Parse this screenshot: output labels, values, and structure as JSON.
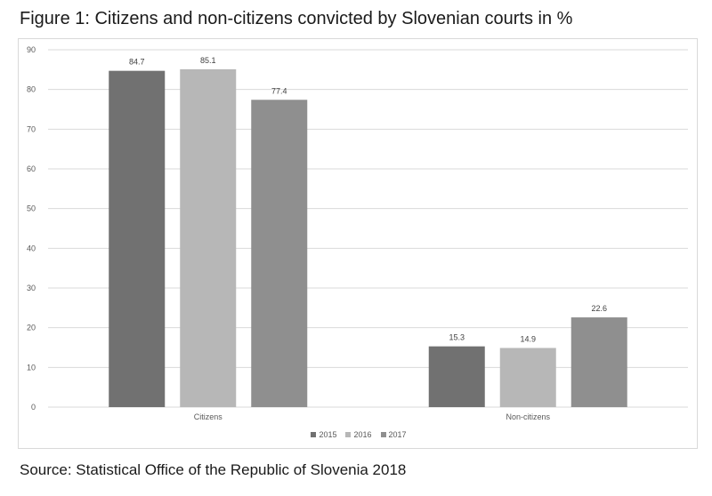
{
  "figure": {
    "title": "Figure 1: Citizens and non-citizens convicted by Slovenian courts in %",
    "source": "Source: Statistical Office of the Republic of Slovenia 2018"
  },
  "colors": {
    "2015": "#717171",
    "2016": "#b7b7b7",
    "2017": "#8f8f8f",
    "grid": "#d9d9d9",
    "text": "#595959"
  },
  "chart_data": {
    "type": "bar",
    "title": "Figure 1: Citizens and non-citizens convicted by Slovenian courts in %",
    "categories": [
      "Citizens",
      "Non-citizens"
    ],
    "series": [
      {
        "name": "2015",
        "values": [
          84.7,
          15.3
        ]
      },
      {
        "name": "2016",
        "values": [
          85.1,
          14.9
        ]
      },
      {
        "name": "2017",
        "values": [
          77.4,
          22.6
        ]
      }
    ],
    "ylim": [
      0,
      90
    ],
    "yticks": [
      0,
      10,
      20,
      30,
      40,
      50,
      60,
      70,
      80,
      90
    ],
    "xlabel": "",
    "ylabel": "",
    "grid": true,
    "legend": "bottom",
    "data_labels": true
  }
}
